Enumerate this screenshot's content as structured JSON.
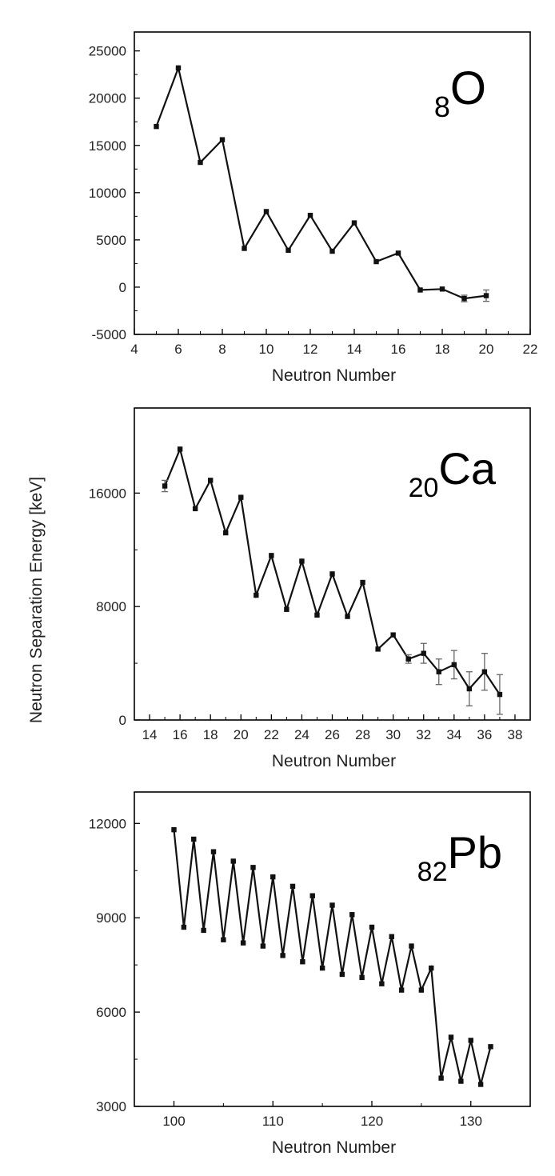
{
  "ylabel": "Neutron Separation Energy [keV]",
  "chart_data": [
    {
      "type": "line",
      "element_label": {
        "subscript": "8",
        "symbol": "O"
      },
      "xlabel": "Neutron Number",
      "xlim": [
        4,
        22
      ],
      "ylim": [
        -5000,
        27000
      ],
      "xticks": [
        4,
        6,
        8,
        10,
        12,
        14,
        16,
        18,
        20,
        22
      ],
      "yticks": [
        -5000,
        0,
        5000,
        10000,
        15000,
        20000,
        25000
      ],
      "series": [
        {
          "x": [
            5,
            6,
            7,
            8,
            9,
            10,
            11,
            12,
            13,
            14,
            15,
            16,
            17,
            18,
            19,
            20
          ],
          "y": [
            17000,
            23200,
            13200,
            15600,
            4100,
            8000,
            3900,
            7600,
            3800,
            6800,
            2700,
            3600,
            -300,
            -200,
            -1200,
            -900
          ],
          "err": [
            0,
            0,
            0,
            0,
            0,
            0,
            0,
            0,
            0,
            0,
            0,
            0,
            0,
            0,
            350,
            600
          ]
        }
      ]
    },
    {
      "type": "line",
      "element_label": {
        "subscript": "20",
        "symbol": "Ca"
      },
      "xlabel": "Neutron Number",
      "xlim": [
        13,
        39
      ],
      "ylim": [
        0,
        22000
      ],
      "xticks": [
        14,
        16,
        18,
        20,
        22,
        24,
        26,
        28,
        30,
        32,
        34,
        36,
        38
      ],
      "yticks": [
        0,
        8000,
        16000
      ],
      "series": [
        {
          "x": [
            15,
            16,
            17,
            18,
            19,
            20,
            21,
            22,
            23,
            24,
            25,
            26,
            27,
            28,
            29,
            30,
            31,
            32,
            33,
            34,
            35,
            36,
            37
          ],
          "y": [
            16500,
            19100,
            14900,
            16900,
            13200,
            15700,
            8800,
            11600,
            7800,
            11200,
            7400,
            10300,
            7300,
            9700,
            5000,
            6000,
            4300,
            4700,
            3400,
            3900,
            2200,
            3400,
            1800
          ],
          "err": [
            400,
            0,
            0,
            0,
            0,
            0,
            0,
            0,
            0,
            0,
            0,
            0,
            0,
            0,
            0,
            0,
            300,
            700,
            900,
            1000,
            1200,
            1300,
            1400
          ]
        }
      ]
    },
    {
      "type": "line",
      "element_label": {
        "subscript": "82",
        "symbol": "Pb"
      },
      "xlabel": "Neutron Number",
      "xlim": [
        96,
        136
      ],
      "ylim": [
        3000,
        13000
      ],
      "xticks": [
        100,
        110,
        120,
        130
      ],
      "yticks": [
        3000,
        6000,
        9000,
        12000
      ],
      "series": [
        {
          "x": [
            100,
            101,
            102,
            103,
            104,
            105,
            106,
            107,
            108,
            109,
            110,
            111,
            112,
            113,
            114,
            115,
            116,
            117,
            118,
            119,
            120,
            121,
            122,
            123,
            124,
            125,
            126,
            127,
            128,
            129,
            130,
            131,
            132
          ],
          "y": [
            11800,
            8700,
            11500,
            8600,
            11100,
            8300,
            10800,
            8200,
            10600,
            8100,
            10300,
            7800,
            10000,
            7600,
            9700,
            7400,
            9400,
            7200,
            9100,
            7100,
            8700,
            6900,
            8400,
            6700,
            8100,
            6700,
            7400,
            3900,
            5200,
            3800,
            5100,
            3700,
            4900
          ],
          "err": []
        }
      ]
    }
  ]
}
